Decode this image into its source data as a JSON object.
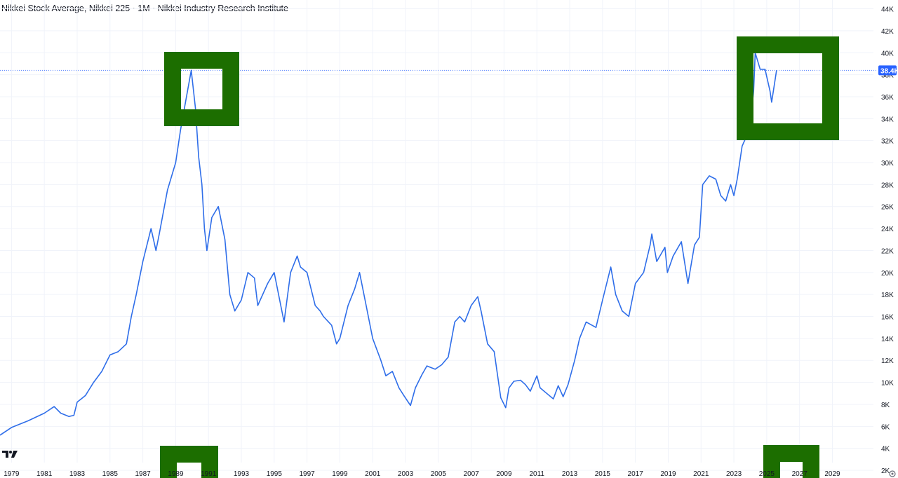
{
  "header": {
    "title": "Nikkei Stock Average, Nikkei 225 · 1M · Nikkei Industry Research Institute"
  },
  "colors": {
    "line": "#2f6ee9",
    "last_price": "#2962ff",
    "annotation": "#1c6e00",
    "grid": "#f0f3fa"
  },
  "icons": {
    "logo": "tradingview-logo-icon",
    "settings": "gear-icon"
  },
  "chart_data": {
    "type": "line",
    "title": "Nikkei Stock Average, Nikkei 225 · 1M · Nikkei Industry Research Institute",
    "xlabel": "",
    "ylabel": "",
    "xlim": [
      1978.3,
      2031.5
    ],
    "ylim": [
      1300,
      44800
    ],
    "grid": true,
    "last_value_label": "38.4K",
    "last_value": 38400,
    "x_ticks": [
      "1979",
      "1981",
      "1983",
      "1985",
      "1987",
      "1989",
      "1991",
      "1993",
      "1995",
      "1997",
      "1999",
      "2001",
      "2003",
      "2005",
      "2007",
      "2009",
      "2011",
      "2013",
      "2015",
      "2017",
      "2019",
      "2021",
      "2023",
      "2025",
      "2027",
      "2029"
    ],
    "y_ticks": [
      {
        "value": 2000,
        "label": "2K"
      },
      {
        "value": 4000,
        "label": "4K"
      },
      {
        "value": 6000,
        "label": "6K"
      },
      {
        "value": 8000,
        "label": "8K"
      },
      {
        "value": 10000,
        "label": "10K"
      },
      {
        "value": 12000,
        "label": "12K"
      },
      {
        "value": 14000,
        "label": "14K"
      },
      {
        "value": 16000,
        "label": "16K"
      },
      {
        "value": 18000,
        "label": "18K"
      },
      {
        "value": 20000,
        "label": "20K"
      },
      {
        "value": 22000,
        "label": "22K"
      },
      {
        "value": 24000,
        "label": "24K"
      },
      {
        "value": 26000,
        "label": "26K"
      },
      {
        "value": 28000,
        "label": "28K"
      },
      {
        "value": 30000,
        "label": "30K"
      },
      {
        "value": 32000,
        "label": "32K"
      },
      {
        "value": 34000,
        "label": "34K"
      },
      {
        "value": 36000,
        "label": "36K"
      },
      {
        "value": 38000,
        "label": "38K"
      },
      {
        "value": 40000,
        "label": "40K"
      },
      {
        "value": 42000,
        "label": "42K"
      },
      {
        "value": 44000,
        "label": "44K"
      }
    ],
    "series": [
      {
        "x": [
          1978.3,
          1979.0,
          1980.0,
          1981.0,
          1981.6,
          1982.0,
          1982.5,
          1982.8,
          1983.0,
          1983.5,
          1984.0,
          1984.5,
          1985.0,
          1985.5,
          1986.0,
          1986.3,
          1986.6,
          1987.0,
          1987.5,
          1987.8,
          1988.0,
          1988.5,
          1989.0,
          1989.3,
          1989.6,
          1989.95,
          1990.2,
          1990.4,
          1990.6,
          1990.75,
          1990.9,
          1991.2,
          1991.6,
          1992.0,
          1992.3,
          1992.6,
          1993.0,
          1993.4,
          1993.8,
          1994.0,
          1994.6,
          1995.0,
          1995.4,
          1995.6,
          1996.0,
          1996.4,
          1996.6,
          1997.0,
          1997.5,
          1997.8,
          1998.0,
          1998.5,
          1998.8,
          1999.0,
          1999.5,
          1999.9,
          2000.2,
          2000.6,
          2001.0,
          2001.5,
          2001.8,
          2002.2,
          2002.6,
          2002.9,
          2003.3,
          2003.6,
          2004.0,
          2004.3,
          2004.8,
          2005.2,
          2005.6,
          2006.0,
          2006.3,
          2006.6,
          2007.0,
          2007.4,
          2007.6,
          2008.0,
          2008.4,
          2008.8,
          2009.1,
          2009.3,
          2009.6,
          2010.0,
          2010.3,
          2010.6,
          2011.0,
          2011.2,
          2011.6,
          2012.0,
          2012.3,
          2012.6,
          2012.9,
          2013.3,
          2013.6,
          2014.0,
          2014.6,
          2015.0,
          2015.5,
          2015.8,
          2016.2,
          2016.6,
          2017.0,
          2017.5,
          2017.9,
          2018.0,
          2018.3,
          2018.8,
          2018.95,
          2019.3,
          2019.8,
          2020.2,
          2020.6,
          2020.9,
          2021.1,
          2021.5,
          2021.9,
          2022.2,
          2022.5,
          2022.8,
          2023.0,
          2023.2,
          2023.5,
          2023.8,
          2024.0,
          2024.2,
          2024.3,
          2024.6,
          2024.9,
          2025.2,
          2025.3,
          2025.6
        ],
        "values": [
          5200,
          5900,
          6500,
          7200,
          7800,
          7200,
          6900,
          7000,
          8200,
          8800,
          10000,
          11000,
          12500,
          12800,
          13500,
          16000,
          18000,
          21000,
          24000,
          22000,
          23500,
          27500,
          30000,
          33000,
          35500,
          38400,
          35000,
          30500,
          28000,
          24000,
          22000,
          25000,
          26000,
          23000,
          18000,
          16500,
          17500,
          20000,
          19500,
          17000,
          19000,
          20000,
          17000,
          15500,
          20000,
          21500,
          20500,
          20000,
          17000,
          16500,
          16000,
          15200,
          13500,
          14000,
          17000,
          18500,
          20000,
          17000,
          14000,
          12000,
          10600,
          11000,
          9500,
          8800,
          7900,
          9500,
          10700,
          11500,
          11200,
          11600,
          12300,
          15500,
          16000,
          15500,
          17000,
          17800,
          16500,
          13500,
          12800,
          8600,
          7700,
          9500,
          10100,
          10200,
          9800,
          9200,
          10600,
          9500,
          9000,
          8500,
          9700,
          8700,
          9800,
          12000,
          14000,
          15500,
          15000,
          17500,
          20500,
          18000,
          16500,
          16000,
          19000,
          20000,
          22500,
          23500,
          21000,
          22300,
          20000,
          21500,
          22800,
          19000,
          22500,
          23200,
          28000,
          28800,
          28500,
          27000,
          26500,
          28000,
          27000,
          28500,
          31500,
          32500,
          33500,
          36500,
          40000,
          38500,
          38500,
          36500,
          35500,
          38400
        ]
      }
    ]
  }
}
